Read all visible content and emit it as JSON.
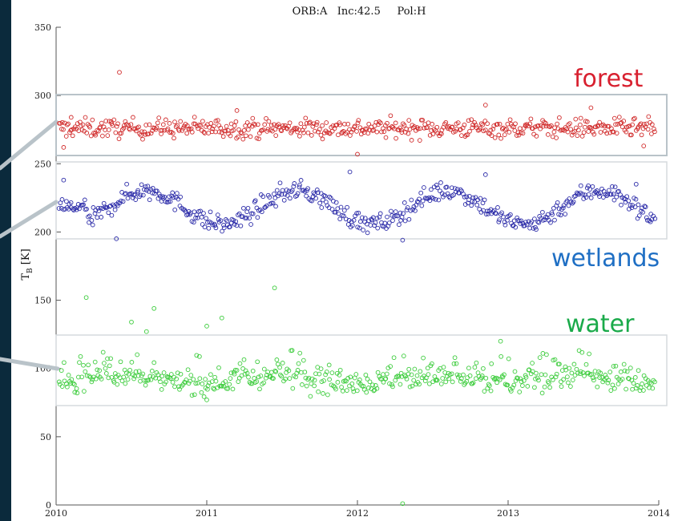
{
  "chart_data": {
    "type": "scatter",
    "title": "ORB:A   Inc:42.5     Pol:H",
    "xlabel": "",
    "ylabel": "T",
    "ylabel_sub": "B",
    "ylabel_unit": " [K]",
    "xlim": [
      2010,
      2014
    ],
    "ylim": [
      0,
      350
    ],
    "x_ticks": [
      "2010",
      "2011",
      "2012",
      "2013",
      "2014"
    ],
    "y_ticks": [
      "0",
      "50",
      "100",
      "150",
      "200",
      "250",
      "300",
      "350"
    ],
    "series": [
      {
        "name": "forest",
        "color": "#d02828",
        "mean": 276,
        "spread": 5,
        "points": [
          [
            2010.42,
            317
          ],
          [
            2012.0,
            257
          ],
          [
            2010.05,
            262
          ],
          [
            2012.85,
            293
          ],
          [
            2013.9,
            263
          ],
          [
            2013.55,
            291
          ],
          [
            2011.2,
            289
          ],
          [
            2010.1,
            284
          ]
        ]
      },
      {
        "name": "wetlands",
        "color": "#2a2aa8",
        "mean": 218,
        "amplitude": 13,
        "points": [
          [
            2010.05,
            238
          ],
          [
            2010.4,
            195
          ],
          [
            2011.95,
            244
          ],
          [
            2012.85,
            242
          ],
          [
            2012.3,
            194
          ],
          [
            2013.85,
            235
          ]
        ]
      },
      {
        "name": "water",
        "color": "#3ccc3c",
        "mean": 92,
        "spread": 6,
        "points": [
          [
            2010.2,
            152
          ],
          [
            2011.45,
            159
          ],
          [
            2010.65,
            144
          ],
          [
            2010.5,
            134
          ],
          [
            2011.0,
            131
          ],
          [
            2011.1,
            137
          ],
          [
            2010.6,
            127
          ],
          [
            2011.0,
            77
          ],
          [
            2012.95,
            120
          ],
          [
            2012.3,
            1
          ]
        ]
      }
    ],
    "annotations": [
      {
        "text": "forest",
        "color": "#d8202f"
      },
      {
        "text": "wetlands",
        "color": "#1f6fc4"
      },
      {
        "text": "water",
        "color": "#1aaa4a"
      }
    ],
    "grid": false
  }
}
